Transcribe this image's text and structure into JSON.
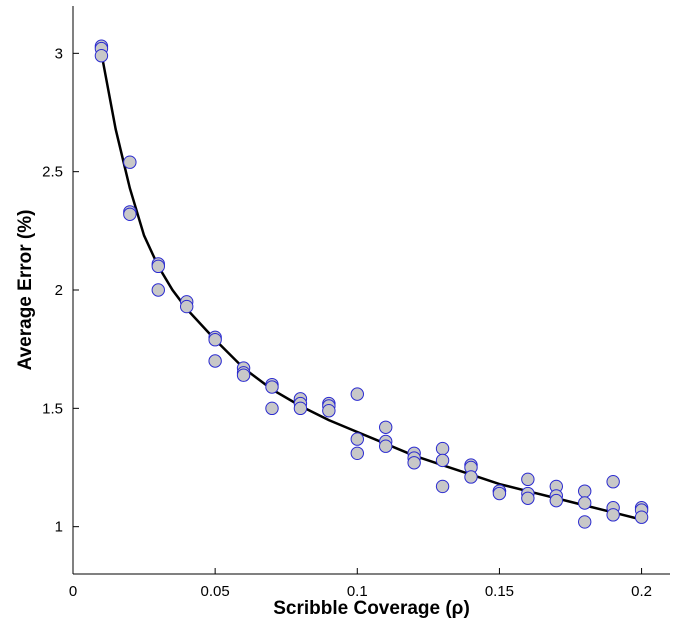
{
  "chart_data": {
    "type": "scatter",
    "title": "",
    "xlabel": "Scribble Coverage (ρ)",
    "ylabel": "Average Error (%)",
    "xlim": [
      0,
      0.21
    ],
    "ylim": [
      0.8,
      3.2
    ],
    "x_ticks": [
      {
        "value": 0,
        "label": "0"
      },
      {
        "value": 0.05,
        "label": "0.05"
      },
      {
        "value": 0.1,
        "label": "0.1"
      },
      {
        "value": 0.15,
        "label": "0.15"
      },
      {
        "value": 0.2,
        "label": "0.2"
      }
    ],
    "y_ticks": [
      {
        "value": 1,
        "label": "1"
      },
      {
        "value": 1.5,
        "label": "1.5"
      },
      {
        "value": 2,
        "label": "2"
      },
      {
        "value": 2.5,
        "label": "2.5"
      },
      {
        "value": 3,
        "label": "3"
      }
    ],
    "grid": false,
    "legend": "none",
    "colors": {
      "marker_fill": "#c8c8c8",
      "marker_edge": "#2a2ad0",
      "curve": "#000000"
    },
    "series": [
      {
        "type": "scatter",
        "points": [
          [
            0.01,
            3.03
          ],
          [
            0.01,
            3.02
          ],
          [
            0.01,
            2.99
          ],
          [
            0.02,
            2.54
          ],
          [
            0.02,
            2.33
          ],
          [
            0.02,
            2.32
          ],
          [
            0.03,
            2.11
          ],
          [
            0.03,
            2.1
          ],
          [
            0.03,
            2.0
          ],
          [
            0.04,
            1.95
          ],
          [
            0.04,
            1.93
          ],
          [
            0.05,
            1.8
          ],
          [
            0.05,
            1.79
          ],
          [
            0.05,
            1.7
          ],
          [
            0.06,
            1.67
          ],
          [
            0.06,
            1.65
          ],
          [
            0.06,
            1.64
          ],
          [
            0.07,
            1.6
          ],
          [
            0.07,
            1.59
          ],
          [
            0.07,
            1.5
          ],
          [
            0.08,
            1.54
          ],
          [
            0.08,
            1.52
          ],
          [
            0.08,
            1.5
          ],
          [
            0.09,
            1.52
          ],
          [
            0.09,
            1.51
          ],
          [
            0.09,
            1.49
          ],
          [
            0.1,
            1.56
          ],
          [
            0.1,
            1.37
          ],
          [
            0.1,
            1.31
          ],
          [
            0.11,
            1.42
          ],
          [
            0.11,
            1.36
          ],
          [
            0.11,
            1.34
          ],
          [
            0.12,
            1.31
          ],
          [
            0.12,
            1.29
          ],
          [
            0.12,
            1.27
          ],
          [
            0.13,
            1.33
          ],
          [
            0.13,
            1.28
          ],
          [
            0.13,
            1.17
          ],
          [
            0.14,
            1.26
          ],
          [
            0.14,
            1.25
          ],
          [
            0.14,
            1.21
          ],
          [
            0.15,
            1.15
          ],
          [
            0.15,
            1.15
          ],
          [
            0.15,
            1.14
          ],
          [
            0.16,
            1.2
          ],
          [
            0.16,
            1.14
          ],
          [
            0.16,
            1.12
          ],
          [
            0.17,
            1.17
          ],
          [
            0.17,
            1.13
          ],
          [
            0.17,
            1.11
          ],
          [
            0.18,
            1.15
          ],
          [
            0.18,
            1.1
          ],
          [
            0.18,
            1.02
          ],
          [
            0.19,
            1.19
          ],
          [
            0.19,
            1.08
          ],
          [
            0.19,
            1.05
          ],
          [
            0.2,
            1.08
          ],
          [
            0.2,
            1.07
          ],
          [
            0.2,
            1.04
          ]
        ]
      },
      {
        "type": "line",
        "x": [
          0.01,
          0.015,
          0.02,
          0.025,
          0.03,
          0.035,
          0.04,
          0.05,
          0.06,
          0.07,
          0.08,
          0.09,
          0.1,
          0.11,
          0.12,
          0.13,
          0.14,
          0.15,
          0.16,
          0.17,
          0.18,
          0.19,
          0.2
        ],
        "y": [
          3.0,
          2.68,
          2.43,
          2.23,
          2.1,
          2.0,
          1.92,
          1.79,
          1.67,
          1.58,
          1.51,
          1.45,
          1.4,
          1.35,
          1.3,
          1.26,
          1.22,
          1.18,
          1.15,
          1.12,
          1.09,
          1.06,
          1.03
        ]
      }
    ]
  }
}
